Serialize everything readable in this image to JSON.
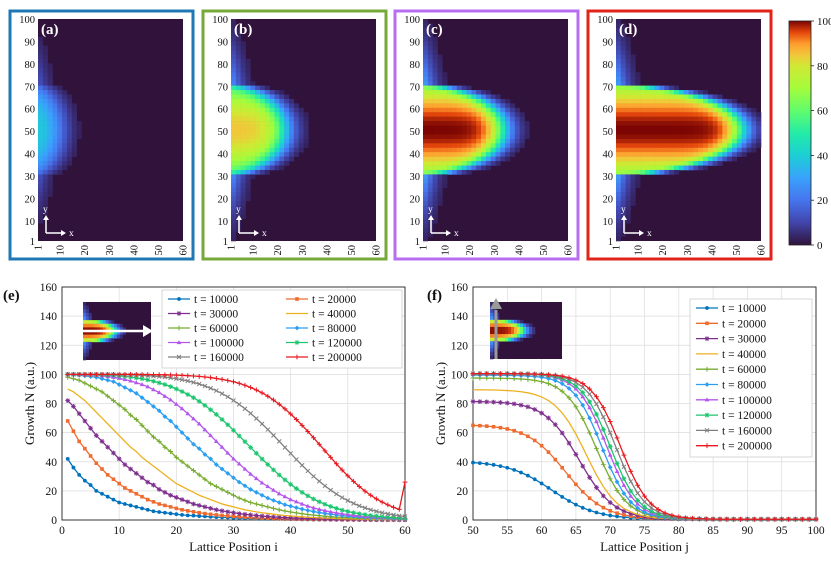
{
  "heatmaps": [
    {
      "label": "(a)",
      "border_color": "#1f77b4",
      "front_x": 9,
      "intensity": 0.42
    },
    {
      "label": "(b)",
      "border_color": "#77a93a",
      "front_x": 22,
      "intensity": 0.85
    },
    {
      "label": "(c)",
      "border_color": "#b76ef0",
      "front_x": 33,
      "intensity": 1.0
    },
    {
      "label": "(d)",
      "border_color": "#e2231a",
      "front_x": 52,
      "intensity": 1.0
    }
  ],
  "heatmap_axes": {
    "y_ticks": [
      "100",
      "90",
      "80",
      "70",
      "60",
      "50",
      "40",
      "30",
      "20",
      "10",
      "1"
    ],
    "x_ticks": [
      "1",
      "10",
      "20",
      "30",
      "40",
      "50",
      "60"
    ],
    "x_arrow_label": "x",
    "y_arrow_label": "y"
  },
  "colorbar": {
    "ticks": [
      "100",
      "80",
      "60",
      "40",
      "20",
      "0"
    ],
    "range": [
      0,
      100
    ]
  },
  "chart_data": [
    {
      "type": "line",
      "panel": "(e)",
      "xlabel": "Lattice Position i",
      "ylabel": "Growth N (a.u.)",
      "xlim": [
        0,
        60
      ],
      "ylim": [
        0,
        160
      ],
      "x_ticks": [
        "0",
        "10",
        "20",
        "30",
        "40",
        "50",
        "60"
      ],
      "y_ticks": [
        "0",
        "20",
        "40",
        "60",
        "80",
        "100",
        "120",
        "140",
        "160"
      ],
      "x": [
        1,
        2,
        3,
        4,
        5,
        6,
        7,
        8,
        9,
        10,
        11,
        12,
        13,
        14,
        15,
        16,
        17,
        18,
        19,
        20,
        21,
        22,
        23,
        24,
        25,
        26,
        27,
        28,
        29,
        30,
        31,
        32,
        33,
        34,
        35,
        36,
        37,
        38,
        39,
        40,
        41,
        42,
        43,
        44,
        45,
        46,
        47,
        48,
        49,
        50,
        51,
        52,
        53,
        54,
        55,
        56,
        57,
        58,
        59,
        60
      ],
      "series": [
        {
          "name": "t = 10000",
          "color": "#0072bd",
          "marker": "circle",
          "values": [
            42,
            36,
            31,
            27,
            24,
            20,
            18,
            16,
            14,
            12,
            11,
            10,
            9,
            8,
            7,
            6,
            5.5,
            5,
            4.5,
            4,
            3.5,
            3.2,
            3,
            2.7,
            2.5,
            2.2,
            2,
            1.8,
            1.7,
            1.5,
            1.3,
            1.2,
            1.1,
            1,
            0.9,
            0.8,
            0.7,
            0.7,
            0.6,
            0.5,
            0.5,
            0.4,
            0.4,
            0.3,
            0.3,
            0.3,
            0.2,
            0.2,
            0.2,
            0.2,
            0.1,
            0.1,
            0.1,
            0.1,
            0.1,
            0.1,
            0.1,
            0.1,
            0.1,
            0.1
          ]
        },
        {
          "name": "t = 20000",
          "color": "#ef6b2f",
          "marker": "square",
          "values": [
            68,
            61,
            54,
            49,
            44,
            39,
            35,
            31,
            28,
            25,
            22,
            20,
            18,
            16,
            14,
            12.5,
            11,
            10,
            9,
            8,
            7,
            6.3,
            5.6,
            5,
            4.4,
            3.9,
            3.5,
            3.1,
            2.8,
            2.5,
            2.2,
            1.9,
            1.7,
            1.5,
            1.3,
            1.2,
            1,
            0.9,
            0.8,
            0.7,
            0.6,
            0.5,
            0.5,
            0.4,
            0.4,
            0.3,
            0.3,
            0.3,
            0.2,
            0.2,
            0.2,
            0.2,
            0.1,
            0.1,
            0.1,
            0.1,
            0.1,
            0.1,
            0.1,
            0.1
          ]
        },
        {
          "name": "t = 30000",
          "color": "#7e2f8e",
          "marker": "star",
          "values": [
            82,
            78,
            73,
            68,
            63,
            58,
            54,
            50,
            46,
            42,
            38,
            35,
            32,
            29,
            26,
            24,
            21,
            19,
            17,
            15.5,
            14,
            12.5,
            11,
            10,
            9,
            8,
            7,
            6.3,
            5.6,
            5,
            4.4,
            3.9,
            3.5,
            3.1,
            2.7,
            2.4,
            2.1,
            1.9,
            1.7,
            1.5,
            1.3,
            1.1,
            1,
            0.9,
            0.8,
            0.7,
            0.6,
            0.5,
            0.5,
            0.4,
            0.4,
            0.3,
            0.3,
            0.3,
            0.2,
            0.2,
            0.2,
            0.2,
            0.1,
            0.1
          ]
        },
        {
          "name": "t = 40000",
          "color": "#edb120",
          "marker": "none",
          "values": [
            90,
            88,
            85,
            82,
            78,
            74,
            70,
            66,
            62,
            58,
            54,
            50,
            47,
            43,
            40,
            37,
            34,
            31,
            28,
            25,
            23,
            21,
            19,
            17,
            15.5,
            14,
            12.5,
            11,
            10,
            9,
            8,
            7,
            6.3,
            5.6,
            5,
            4.5,
            4,
            3.5,
            3.1,
            2.8,
            2.5,
            2.2,
            1.9,
            1.7,
            1.5,
            1.3,
            1.2,
            1,
            0.9,
            0.8,
            0.7,
            0.6,
            0.6,
            0.5,
            0.4,
            0.4,
            0.3,
            0.3,
            0.3,
            0.2
          ]
        },
        {
          "name": "t = 60000",
          "color": "#77ac30",
          "marker": "plus",
          "values": [
            98,
            97,
            96,
            94,
            92,
            90,
            88,
            85,
            82,
            79,
            76,
            72,
            69,
            65,
            61,
            57,
            54,
            50,
            47,
            43,
            40,
            37,
            34,
            31,
            28,
            25,
            23,
            21,
            19,
            17,
            15,
            13.5,
            12,
            11,
            10,
            9,
            8,
            7,
            6.2,
            5.5,
            4.9,
            4.3,
            3.8,
            3.4,
            3,
            2.6,
            2.3,
            2,
            1.8,
            1.6,
            1.4,
            1.2,
            1.1,
            1,
            0.9,
            0.8,
            0.7,
            0.6,
            0.5,
            0.5
          ]
        },
        {
          "name": "t = 80000",
          "color": "#2b9ff0",
          "marker": "diamond",
          "values": [
            100,
            99.8,
            99.5,
            99,
            98.5,
            98,
            97,
            96,
            95,
            93,
            91,
            89,
            87,
            84,
            81,
            78,
            75,
            71,
            68,
            64,
            60,
            56,
            52,
            49,
            45,
            42,
            38,
            35,
            32,
            29,
            26,
            23.5,
            21,
            19,
            17,
            15,
            13.5,
            12,
            10.5,
            9.5,
            8.5,
            7.5,
            6.6,
            5.8,
            5.1,
            4.5,
            4,
            3.5,
            3,
            2.7,
            2.4,
            2.1,
            1.8,
            1.6,
            1.4,
            1.2,
            1.1,
            1,
            0.9,
            0.8
          ]
        },
        {
          "name": "t = 100000",
          "color": "#b557ec",
          "marker": "triangle",
          "values": [
            100,
            100,
            99.9,
            99.8,
            99.6,
            99.3,
            99,
            98.5,
            98,
            97.3,
            96.5,
            95.5,
            94.3,
            93,
            91.5,
            89.5,
            87.5,
            85,
            82.5,
            79.5,
            76.5,
            73,
            69.5,
            66,
            62,
            58,
            54,
            50,
            46,
            42,
            38.5,
            35,
            31.5,
            28.5,
            25.5,
            23,
            20.5,
            18,
            16,
            14,
            12.5,
            11,
            9.5,
            8.3,
            7.3,
            6.4,
            5.6,
            4.9,
            4.3,
            3.7,
            3.2,
            2.8,
            2.4,
            2.1,
            1.8,
            1.6,
            1.4,
            1.2,
            1,
            0.9
          ]
        },
        {
          "name": "t = 120000",
          "color": "#1cc56e",
          "marker": "star",
          "values": [
            100,
            100,
            100,
            100,
            99.9,
            99.8,
            99.7,
            99.5,
            99.3,
            99,
            98.6,
            98.2,
            97.6,
            97,
            96.2,
            95.3,
            94.2,
            93,
            91.6,
            90,
            88.2,
            86.2,
            84,
            81.5,
            78.7,
            75.7,
            72.5,
            69,
            65.4,
            61.6,
            57.7,
            53.8,
            49.8,
            45.8,
            41.9,
            38.1,
            34.4,
            30.9,
            27.6,
            24.5,
            21.6,
            19,
            16.6,
            14.4,
            12.5,
            10.8,
            9.3,
            8,
            6.8,
            5.8,
            5,
            4.3,
            3.7,
            3.1,
            2.7,
            2.3,
            1.9,
            1.6,
            1.4,
            1.2
          ]
        },
        {
          "name": "t = 160000",
          "color": "#808080",
          "marker": "x",
          "values": [
            100,
            100,
            100,
            100,
            100,
            100,
            100,
            99.9,
            99.9,
            99.8,
            99.7,
            99.6,
            99.5,
            99.3,
            99.1,
            98.8,
            98.5,
            98.1,
            97.6,
            97,
            96.3,
            95.5,
            94.5,
            93.4,
            92,
            90.5,
            88.8,
            86.8,
            84.6,
            82.1,
            79.4,
            76.4,
            73.2,
            69.7,
            66,
            62.1,
            58.1,
            54,
            49.8,
            45.7,
            41.6,
            37.6,
            33.7,
            30,
            26.6,
            23.4,
            20.5,
            17.8,
            15.4,
            13.3,
            11.4,
            9.7,
            8.3,
            7,
            5.9,
            5,
            4.2,
            3.5,
            2.9,
            2.4
          ]
        },
        {
          "name": "t = 200000",
          "color": "#e8191f",
          "marker": "plus",
          "values": [
            100,
            100,
            100,
            100,
            100,
            100,
            100,
            100,
            100,
            100,
            100,
            100,
            100,
            99.9,
            99.9,
            99.8,
            99.8,
            99.7,
            99.6,
            99.5,
            99.3,
            99.1,
            98.9,
            98.6,
            98.2,
            97.8,
            97.2,
            96.6,
            95.8,
            94.9,
            93.8,
            92.5,
            91,
            89.3,
            87.3,
            85,
            82.4,
            79.5,
            76.3,
            72.8,
            69,
            65,
            60.8,
            56.5,
            52,
            47.5,
            43,
            38.6,
            34.3,
            30.3,
            26.5,
            23,
            19.8,
            17,
            14.5,
            12.3,
            10.4,
            8.7,
            7.3,
            26
          ]
        }
      ],
      "legend_columns": 2,
      "legend_position": "top-right",
      "inset": "heatmap-with-horizontal-arrow"
    },
    {
      "type": "line",
      "panel": "(f)",
      "xlabel": "Lattice Position j",
      "ylabel": "Growth N (a.u.)",
      "xlim": [
        50,
        100
      ],
      "ylim": [
        0,
        160
      ],
      "x_ticks": [
        "50",
        "55",
        "60",
        "65",
        "70",
        "75",
        "80",
        "85",
        "90",
        "95",
        "100"
      ],
      "y_ticks": [
        "0",
        "20",
        "40",
        "60",
        "80",
        "100",
        "120",
        "140",
        "160"
      ],
      "x": [
        50,
        51,
        52,
        53,
        54,
        55,
        56,
        57,
        58,
        59,
        60,
        61,
        62,
        63,
        64,
        65,
        66,
        67,
        68,
        69,
        70,
        71,
        72,
        73,
        74,
        75,
        76,
        77,
        78,
        79,
        80,
        81,
        82,
        83,
        84,
        85,
        86,
        87,
        88,
        89,
        90,
        91,
        92,
        93,
        94,
        95,
        96,
        97,
        98,
        99,
        100
      ],
      "series": [
        {
          "name": "t = 10000",
          "color": "#0072bd",
          "marker": "circle",
          "params": {
            "peak": 40,
            "mid": 61.5,
            "width": 3.2
          }
        },
        {
          "name": "t = 20000",
          "color": "#ef6b2f",
          "marker": "square",
          "params": {
            "peak": 65,
            "mid": 63.5,
            "width": 2.8
          }
        },
        {
          "name": "t = 30000",
          "color": "#7e2f8e",
          "marker": "star",
          "params": {
            "peak": 81,
            "mid": 65.5,
            "width": 2.5
          }
        },
        {
          "name": "t = 40000",
          "color": "#edb120",
          "marker": "none",
          "params": {
            "peak": 89,
            "mid": 66.5,
            "width": 2.3
          }
        },
        {
          "name": "t = 60000",
          "color": "#77ac30",
          "marker": "plus",
          "params": {
            "peak": 97,
            "mid": 68,
            "width": 2.2
          }
        },
        {
          "name": "t = 80000",
          "color": "#2b9ff0",
          "marker": "diamond",
          "params": {
            "peak": 99,
            "mid": 68.8,
            "width": 2.1
          }
        },
        {
          "name": "t = 100000",
          "color": "#b557ec",
          "marker": "triangle",
          "params": {
            "peak": 100,
            "mid": 69.5,
            "width": 2.1
          }
        },
        {
          "name": "t = 120000",
          "color": "#1cc56e",
          "marker": "star",
          "params": {
            "peak": 100,
            "mid": 70,
            "width": 2.1
          }
        },
        {
          "name": "t = 160000",
          "color": "#808080",
          "marker": "x",
          "params": {
            "peak": 100,
            "mid": 70.8,
            "width": 2.1
          }
        },
        {
          "name": "t = 200000",
          "color": "#e8191f",
          "marker": "plus",
          "params": {
            "peak": 100,
            "mid": 71.5,
            "width": 2.1
          }
        }
      ],
      "legend_columns": 1,
      "legend_position": "top-right",
      "inset": "heatmap-with-vertical-arrow"
    }
  ],
  "panel_labels": {
    "e": "(e)",
    "f": "(f)"
  }
}
